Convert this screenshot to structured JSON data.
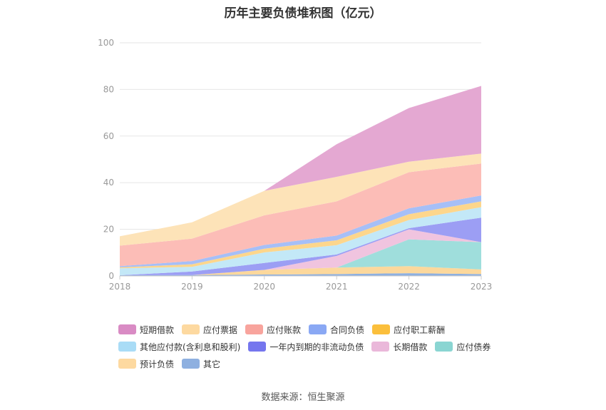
{
  "chart_data": {
    "type": "area",
    "title": "历年主要负债堆积图（亿元）",
    "categories": [
      "2018",
      "2019",
      "2020",
      "2021",
      "2022",
      "2023"
    ],
    "ylim": [
      0,
      100
    ],
    "yticks": [
      0,
      20,
      40,
      60,
      80,
      100
    ],
    "grid": true,
    "legend_position": "bottom",
    "series": [
      {
        "name": "其它",
        "color": "#8eb0e0",
        "values": [
          0.3,
          0.4,
          0.6,
          0.8,
          1.2,
          0.8
        ]
      },
      {
        "name": "预计负债",
        "color": "#fcd89c",
        "values": [
          0,
          0,
          2.0,
          2.8,
          3.0,
          2.0
        ]
      },
      {
        "name": "应付债券",
        "color": "#9fdedc",
        "values": [
          0,
          0,
          0,
          0,
          11.5,
          11.7
        ]
      },
      {
        "name": "长期借款",
        "color": "#f0c4df",
        "values": [
          0,
          0,
          0,
          5.0,
          4.3,
          0
        ]
      },
      {
        "name": "一年内到期的非流动负债",
        "color": "#9c9ef4",
        "values": [
          0,
          1.5,
          3.0,
          0.6,
          0.5,
          10.5
        ]
      },
      {
        "name": "其他应付款(含利息和股利)",
        "color": "#c3e8f7",
        "values": [
          3.0,
          2.0,
          4.5,
          4.0,
          3.5,
          4.5
        ]
      },
      {
        "name": "应付职工薪酬",
        "color": "#fdd68c",
        "values": [
          0.4,
          1.1,
          1.6,
          2.1,
          2.5,
          2.5
        ]
      },
      {
        "name": "合同负债",
        "color": "#a6bff7",
        "values": [
          0.5,
          1.4,
          1.6,
          2.0,
          2.5,
          2.5
        ]
      },
      {
        "name": "应付账款",
        "color": "#fcbdb7",
        "values": [
          8.8,
          9.6,
          12.7,
          14.7,
          15.5,
          13.7
        ]
      },
      {
        "name": "应付票据",
        "color": "#fde3b8",
        "values": [
          4.0,
          7.0,
          10.5,
          10.5,
          4.5,
          4.3
        ]
      },
      {
        "name": "短期借款",
        "color": "#e4a8d2",
        "values": [
          0,
          0,
          0,
          14.0,
          23.0,
          29.0
        ]
      }
    ]
  },
  "legend": [
    [
      "短期借款",
      "应付票据",
      "应付账款",
      "合同负债",
      "应付职工薪酬"
    ],
    [
      "其他应付款(含利息和股利)",
      "一年内到期的非流动负债",
      "长期借款",
      "应付债券"
    ],
    [
      "预计负债",
      "其它"
    ]
  ],
  "legend_colors": {
    "短期借款": "#d98bc4",
    "应付票据": "#fdd9a0",
    "应付账款": "#f8a49d",
    "合同负债": "#8aa8f4",
    "应付职工薪酬": "#fbbf3c",
    "其他应付款(含利息和股利)": "#a9dcf6",
    "一年内到期的非流动负债": "#7576ee",
    "长期借款": "#eab8da",
    "应付债券": "#8ad5d2",
    "预计负债": "#fdd9a0",
    "其它": "#8eb0e0"
  },
  "source": "数据来源：恒生聚源"
}
